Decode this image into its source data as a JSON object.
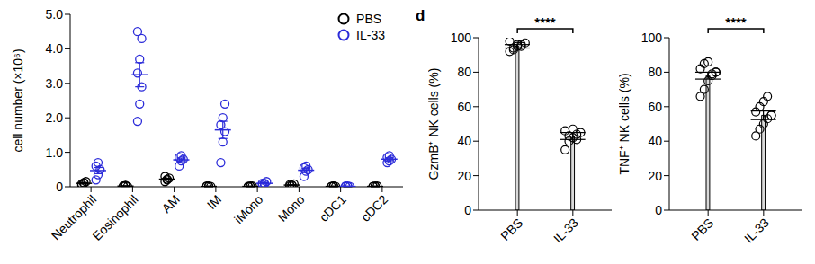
{
  "panel_label": "d",
  "chart_data": [
    {
      "type": "scatter",
      "ylabel": "cell number (×10⁶)",
      "categories": [
        "Neutrophil",
        "Eosinophil",
        "AM",
        "IM",
        "iMono",
        "Mono",
        "cDC1",
        "cDC2"
      ],
      "ylim": [
        0,
        5
      ],
      "yticks": [
        0,
        {
          "value": 1,
          "label": "1.0"
        },
        {
          "value": 2,
          "label": "2.0"
        },
        {
          "value": 3,
          "label": "3.0"
        },
        {
          "value": 4,
          "label": "4.0"
        },
        {
          "value": 5,
          "label": "5.0"
        }
      ],
      "legend": "upper right",
      "marker": "open circle",
      "series": [
        {
          "name": "PBS",
          "color": "#000000",
          "values": [
            [
              0.05,
              0.1,
              0.15,
              0.08,
              0.12
            ],
            [
              0.02,
              0.03,
              0.01,
              0.02,
              0.04
            ],
            [
              0.15,
              0.2,
              0.25,
              0.3,
              0.22
            ],
            [
              0.01,
              0.02,
              0.01,
              0.02,
              0.01
            ],
            [
              0.01,
              0.01,
              0.02,
              0.01,
              0.02
            ],
            [
              0.03,
              0.05,
              0.08,
              0.06,
              0.04
            ],
            [
              0.01,
              0.02,
              0.01,
              0.01,
              0.02
            ],
            [
              0.01,
              0.01,
              0.02,
              0.01,
              0.02
            ]
          ],
          "mean": [
            0.1,
            0.02,
            0.22,
            0.01,
            0.01,
            0.05,
            0.01,
            0.01
          ],
          "error": [
            0.02,
            0.01,
            0.03,
            0.01,
            0.01,
            0.01,
            0.01,
            0.01
          ]
        },
        {
          "name": "IL-33",
          "color": "#2b2bd9",
          "values": [
            [
              0.2,
              0.35,
              0.5,
              0.6,
              0.7
            ],
            [
              1.9,
              2.4,
              2.9,
              3.3,
              3.7,
              4.3,
              4.5
            ],
            [
              0.6,
              0.75,
              0.8,
              0.85,
              0.9
            ],
            [
              0.7,
              1.3,
              1.6,
              1.8,
              2.0,
              2.4
            ],
            [
              0.05,
              0.1,
              0.15,
              0.1,
              0.08
            ],
            [
              0.3,
              0.45,
              0.5,
              0.55,
              0.6
            ],
            [
              0.01,
              0.02,
              0.01,
              0.02,
              0.01
            ],
            [
              0.7,
              0.75,
              0.8,
              0.85,
              0.9
            ]
          ],
          "mean": [
            0.47,
            3.25,
            0.78,
            1.65,
            0.1,
            0.48,
            0.01,
            0.8
          ],
          "error": [
            0.09,
            0.35,
            0.05,
            0.25,
            0.02,
            0.05,
            0.01,
            0.04
          ]
        }
      ]
    },
    {
      "type": "bar",
      "ylabel": "GzmB⁺ NK cells (%)",
      "categories": [
        "PBS",
        "IL-33"
      ],
      "values": [
        95,
        43
      ],
      "errors": [
        1,
        2
      ],
      "color": "#d9d9d9",
      "marker": "open circle",
      "points": [
        [
          92,
          94,
          95,
          96,
          97,
          98,
          93,
          96,
          95
        ],
        [
          35,
          40,
          42,
          44,
          45,
          46,
          43,
          47,
          41
        ]
      ],
      "ylim": [
        0,
        100
      ],
      "yticks": [
        0,
        20,
        40,
        60,
        80,
        100
      ],
      "significance": "****"
    },
    {
      "type": "bar",
      "ylabel": "TNF⁺ NK cells (%)",
      "categories": [
        "PBS",
        "IL-33"
      ],
      "values": [
        78,
        55
      ],
      "errors": [
        2,
        2.5
      ],
      "color": "#d9d9d9",
      "marker": "open circle",
      "points": [
        [
          66,
          70,
          75,
          78,
          80,
          82,
          85,
          86,
          79,
          80
        ],
        [
          43,
          47,
          50,
          53,
          55,
          57,
          60,
          63,
          66,
          55
        ]
      ],
      "ylim": [
        0,
        100
      ],
      "yticks": [
        0,
        20,
        40,
        60,
        80,
        100
      ],
      "significance": "****"
    }
  ]
}
